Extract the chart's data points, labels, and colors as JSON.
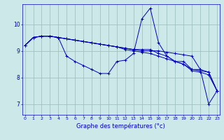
{
  "xlabel": "Graphe des températures (°c)",
  "background_color": "#cce8e8",
  "line_color": "#0000bb",
  "grid_color": "#99bbbb",
  "ylim": [
    6.6,
    10.75
  ],
  "xlim": [
    -0.3,
    23.3
  ],
  "yticks": [
    7,
    8,
    9,
    10
  ],
  "xticks": [
    0,
    1,
    2,
    3,
    4,
    5,
    6,
    7,
    8,
    9,
    10,
    11,
    12,
    13,
    14,
    15,
    16,
    17,
    18,
    19,
    20,
    21,
    22,
    23
  ],
  "series": [
    [
      9.2,
      9.5,
      9.55,
      9.55,
      9.5,
      8.8,
      8.6,
      8.45,
      8.3,
      8.15,
      8.15,
      8.6,
      8.65,
      8.9,
      10.2,
      10.6,
      9.3,
      8.8,
      8.6,
      8.6,
      8.3,
      8.3,
      7.0,
      7.5
    ],
    [
      9.2,
      9.5,
      9.55,
      9.55,
      9.5,
      9.45,
      9.4,
      9.35,
      9.3,
      9.25,
      9.2,
      9.15,
      9.1,
      9.05,
      9.0,
      9.0,
      9.0,
      8.95,
      8.9,
      8.85,
      8.8,
      8.3,
      8.2,
      7.5
    ],
    [
      9.2,
      9.5,
      9.55,
      9.55,
      9.5,
      9.45,
      9.4,
      9.35,
      9.3,
      9.25,
      9.2,
      9.15,
      9.1,
      9.05,
      9.05,
      9.05,
      8.9,
      8.8,
      8.6,
      8.5,
      8.3,
      8.25,
      8.2,
      7.5
    ],
    [
      9.2,
      9.5,
      9.55,
      9.55,
      9.5,
      9.45,
      9.4,
      9.35,
      9.3,
      9.25,
      9.2,
      9.15,
      9.05,
      9.0,
      8.95,
      8.9,
      8.8,
      8.7,
      8.6,
      8.5,
      8.25,
      8.2,
      8.1,
      7.5
    ]
  ]
}
